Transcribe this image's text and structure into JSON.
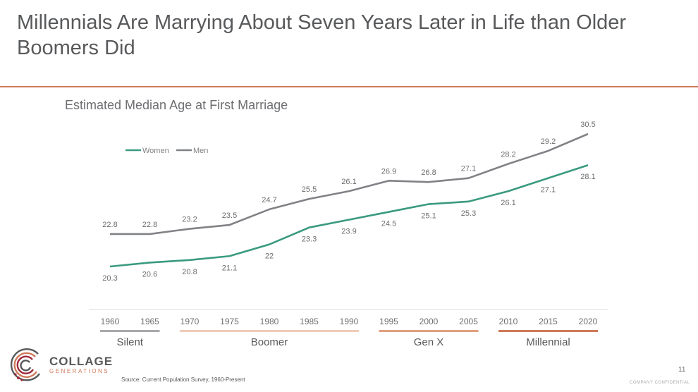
{
  "slide": {
    "title": "Millennials Are Marrying About Seven Years Later in Life than Older Boomers Did",
    "source": "Source: Current Population Survey, 1960-Present",
    "page_number": "11",
    "confidential": "COMPANY CONFIDENTIAL"
  },
  "logo": {
    "name": "COLLAGE",
    "subtitle": "GENERATIONS",
    "colors": [
      "#58595b",
      "#d07a5a",
      "#9e2a3a"
    ]
  },
  "chart_data": {
    "type": "line",
    "title": "Estimated Median Age at First Marriage",
    "categories": [
      "1960",
      "1965",
      "1970",
      "1975",
      "1980",
      "1985",
      "1990",
      "1995",
      "2000",
      "2005",
      "2010",
      "2015",
      "2020"
    ],
    "series": [
      {
        "name": "Women",
        "color": "#3a9a80",
        "values": [
          20.3,
          20.6,
          20.8,
          21.1,
          22,
          23.3,
          23.9,
          24.5,
          25.1,
          25.3,
          26.1,
          27.1,
          28.1
        ],
        "labels": [
          "20.3",
          "20.6",
          "20.8",
          "21.1",
          "22",
          "23.3",
          "23.9",
          "24.5",
          "25.1",
          "25.3",
          "26.1",
          "27.1",
          "28.1"
        ]
      },
      {
        "name": "Men",
        "color": "#808285",
        "values": [
          22.8,
          22.8,
          23.2,
          23.5,
          24.7,
          25.5,
          26.1,
          26.9,
          26.8,
          27.1,
          28.2,
          29.2,
          30.5
        ],
        "labels": [
          "22.8",
          "22.8",
          "23.2",
          "23.5",
          "24.7",
          "25.5",
          "26.1",
          "26.9",
          "26.8",
          "27.1",
          "28.2",
          "29.2",
          "30.5"
        ]
      }
    ],
    "legend_position": "top-left",
    "grid": false,
    "generations": [
      {
        "name": "Silent",
        "from": "1960",
        "to": "1965",
        "color": "#a7a9ac"
      },
      {
        "name": "Boomer",
        "from": "1970",
        "to": "1990",
        "color": "#f0cdb8"
      },
      {
        "name": "Gen X",
        "from": "1995",
        "to": "2005",
        "color": "#e0a080"
      },
      {
        "name": "Millennial",
        "from": "2010",
        "to": "2020",
        "color": "#d07a5a"
      }
    ]
  }
}
